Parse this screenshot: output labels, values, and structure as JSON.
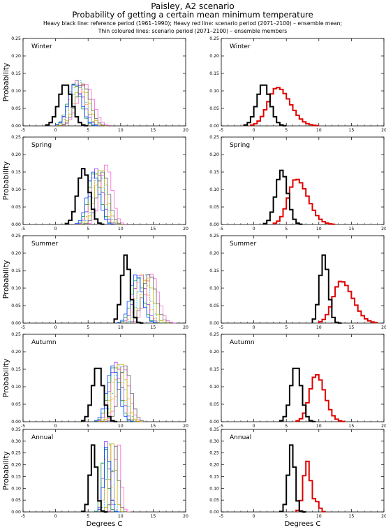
{
  "header": {
    "line1": "Paisley, A2 scenario",
    "line2": "Probability of getting a certain mean minimum temperature",
    "line3": "Heavy black line: reference period (1961–1990); Heavy red line: scenario period (2071–2100) – ensemble mean;",
    "line4": "Thin coloured lines: scenario period (2071–2100) – ensemble members"
  },
  "colors": {
    "reference": "#000000",
    "ensemble_mean": "#e00000",
    "members": [
      "#9b30ff",
      "#ff5fd2",
      "#00b4ff",
      "#009a3a",
      "#c8b400",
      "#ff8c00",
      "#0044ff",
      "#666666"
    ]
  },
  "labels": {
    "ylabel": "Probability",
    "xlabel": "Degrees C"
  },
  "chart_data": [
    {
      "panel": "Winter",
      "column": "ensemble members",
      "type": "line",
      "step": true,
      "xlim": [
        -5,
        20
      ],
      "xticks": [
        -5,
        0,
        5,
        10,
        15,
        20
      ],
      "ylim": [
        0,
        0.25
      ],
      "yticks": [
        "0.00",
        "0.05",
        "0.10",
        "0.15",
        "0.20",
        "0.25"
      ],
      "reference": {
        "mean": 1.5,
        "sd": 1.0,
        "peak": 0.12
      },
      "members": [
        {
          "mean": 3.2,
          "sd": 1.1,
          "peak": 0.13
        },
        {
          "mean": 4.6,
          "sd": 1.2,
          "peak": 0.12
        },
        {
          "mean": 3.6,
          "sd": 1.0,
          "peak": 0.13
        },
        {
          "mean": 2.9,
          "sd": 1.0,
          "peak": 0.12
        },
        {
          "mean": 4.0,
          "sd": 1.1,
          "peak": 0.12
        },
        {
          "mean": 3.4,
          "sd": 1.1,
          "peak": 0.13
        },
        {
          "mean": 3.0,
          "sd": 1.0,
          "peak": 0.12
        },
        {
          "mean": 4.2,
          "sd": 1.1,
          "peak": 0.12
        }
      ]
    },
    {
      "panel": "Winter",
      "column": "ensemble mean",
      "type": "line",
      "step": true,
      "xlim": [
        -5,
        20
      ],
      "xticks": [
        -5,
        0,
        5,
        10,
        15,
        20
      ],
      "ylim": [
        0,
        0.25
      ],
      "yticks": [
        "0.00",
        "0.05",
        "0.10",
        "0.15",
        "0.20",
        "0.25"
      ],
      "reference": {
        "mean": 1.5,
        "sd": 1.0,
        "peak": 0.12
      },
      "ensemble_mean": {
        "mean": 3.6,
        "sd": 1.4,
        "peak": 0.11,
        "skew": 0.4
      }
    },
    {
      "panel": "Spring",
      "column": "ensemble members",
      "type": "line",
      "step": true,
      "xlim": [
        -5,
        20
      ],
      "xticks": [
        -5,
        0,
        5,
        10,
        15,
        20
      ],
      "ylim": [
        0,
        0.25
      ],
      "yticks": [
        "0.00",
        "0.05",
        "0.10",
        "0.15",
        "0.20",
        "0.25"
      ],
      "reference": {
        "mean": 4.3,
        "sd": 0.9,
        "peak": 0.16
      },
      "members": [
        {
          "mean": 6.3,
          "sd": 0.9,
          "peak": 0.16
        },
        {
          "mean": 7.8,
          "sd": 0.9,
          "peak": 0.17
        },
        {
          "mean": 6.8,
          "sd": 0.9,
          "peak": 0.15
        },
        {
          "mean": 6.0,
          "sd": 0.9,
          "peak": 0.15
        },
        {
          "mean": 7.0,
          "sd": 0.9,
          "peak": 0.16
        },
        {
          "mean": 6.5,
          "sd": 0.9,
          "peak": 0.15
        },
        {
          "mean": 5.8,
          "sd": 0.9,
          "peak": 0.15
        },
        {
          "mean": 7.3,
          "sd": 0.9,
          "peak": 0.15
        }
      ]
    },
    {
      "panel": "Spring",
      "column": "ensemble mean",
      "type": "line",
      "step": true,
      "xlim": [
        -5,
        20
      ],
      "xticks": [
        -5,
        0,
        5,
        10,
        15,
        20
      ],
      "ylim": [
        0,
        0.25
      ],
      "yticks": [
        "0.00",
        "0.05",
        "0.10",
        "0.15",
        "0.20",
        "0.25"
      ],
      "reference": {
        "mean": 4.3,
        "sd": 0.9,
        "peak": 0.155
      },
      "ensemble_mean": {
        "mean": 6.5,
        "sd": 1.2,
        "peak": 0.13,
        "skew": 0.5
      }
    },
    {
      "panel": "Summer",
      "column": "ensemble members",
      "type": "line",
      "step": true,
      "xlim": [
        -5,
        20
      ],
      "xticks": [
        -5,
        0,
        5,
        10,
        15,
        20
      ],
      "ylim": [
        0,
        0.25
      ],
      "yticks": [
        "0.00",
        "0.05",
        "0.10",
        "0.15",
        "0.20",
        "0.25"
      ],
      "reference": {
        "mean": 10.8,
        "sd": 0.65,
        "peak": 0.195
      },
      "members": [
        {
          "mean": 13.0,
          "sd": 0.9,
          "peak": 0.14
        },
        {
          "mean": 14.8,
          "sd": 1.0,
          "peak": 0.14
        },
        {
          "mean": 13.6,
          "sd": 0.9,
          "peak": 0.14
        },
        {
          "mean": 12.6,
          "sd": 0.9,
          "peak": 0.13
        },
        {
          "mean": 14.1,
          "sd": 0.9,
          "peak": 0.13
        },
        {
          "mean": 13.3,
          "sd": 0.9,
          "peak": 0.14
        },
        {
          "mean": 12.4,
          "sd": 0.9,
          "peak": 0.14
        },
        {
          "mean": 14.4,
          "sd": 1.0,
          "peak": 0.14
        }
      ]
    },
    {
      "panel": "Summer",
      "column": "ensemble mean",
      "type": "line",
      "step": true,
      "xlim": [
        -5,
        20
      ],
      "xticks": [
        -5,
        0,
        5,
        10,
        15,
        20
      ],
      "ylim": [
        0,
        0.25
      ],
      "yticks": [
        "0.00",
        "0.05",
        "0.10",
        "0.15",
        "0.20",
        "0.25"
      ],
      "reference": {
        "mean": 10.8,
        "sd": 0.65,
        "peak": 0.195
      },
      "ensemble_mean": {
        "mean": 13.4,
        "sd": 1.2,
        "peak": 0.12,
        "skew": 0.5
      }
    },
    {
      "panel": "Autumn",
      "column": "ensemble members",
      "type": "line",
      "step": true,
      "xlim": [
        -5,
        20
      ],
      "xticks": [
        -5,
        0,
        5,
        10,
        15,
        20
      ],
      "ylim": [
        0,
        0.25
      ],
      "yticks": [
        "0.00",
        "0.05",
        "0.10",
        "0.15",
        "0.20",
        "0.25"
      ],
      "reference": {
        "mean": 6.5,
        "sd": 0.8,
        "peak": 0.16
      },
      "members": [
        {
          "mean": 9.3,
          "sd": 0.9,
          "peak": 0.17
        },
        {
          "mean": 10.4,
          "sd": 0.9,
          "peak": 0.16
        },
        {
          "mean": 9.8,
          "sd": 0.9,
          "peak": 0.16
        },
        {
          "mean": 9.0,
          "sd": 0.9,
          "peak": 0.16
        },
        {
          "mean": 10.0,
          "sd": 0.9,
          "peak": 0.17
        },
        {
          "mean": 9.5,
          "sd": 0.9,
          "peak": 0.16
        },
        {
          "mean": 8.8,
          "sd": 0.9,
          "peak": 0.16
        },
        {
          "mean": 10.7,
          "sd": 0.9,
          "peak": 0.16
        }
      ]
    },
    {
      "panel": "Autumn",
      "column": "ensemble mean",
      "type": "line",
      "step": true,
      "xlim": [
        -5,
        20
      ],
      "xticks": [
        -5,
        0,
        5,
        10,
        15,
        20
      ],
      "ylim": [
        0,
        0.25
      ],
      "yticks": [
        "0.00",
        "0.05",
        "0.10",
        "0.15",
        "0.20",
        "0.25"
      ],
      "reference": {
        "mean": 6.5,
        "sd": 0.8,
        "peak": 0.16
      },
      "ensemble_mean": {
        "mean": 9.6,
        "sd": 1.0,
        "peak": 0.135,
        "skew": 0.3
      }
    },
    {
      "panel": "Annual",
      "column": "ensemble members",
      "type": "line",
      "step": true,
      "xlim": [
        -5,
        20
      ],
      "xticks": [
        -5,
        0,
        5,
        10,
        15,
        20
      ],
      "ylim": [
        0,
        0.35
      ],
      "yticks": [
        "0.00",
        "0.05",
        "0.10",
        "0.15",
        "0.20",
        "0.25",
        "0.30",
        "0.35"
      ],
      "reference": {
        "mean": 5.8,
        "sd": 0.5,
        "peak": 0.285
      },
      "members": [
        {
          "mean": 7.8,
          "sd": 0.45,
          "peak": 0.3
        },
        {
          "mean": 9.6,
          "sd": 0.45,
          "peak": 0.3
        },
        {
          "mean": 8.3,
          "sd": 0.45,
          "peak": 0.29
        },
        {
          "mean": 7.6,
          "sd": 0.45,
          "peak": 0.28
        },
        {
          "mean": 8.8,
          "sd": 0.45,
          "peak": 0.29
        },
        {
          "mean": 8.1,
          "sd": 0.45,
          "peak": 0.3
        },
        {
          "mean": 7.9,
          "sd": 0.45,
          "peak": 0.29
        },
        {
          "mean": 9.2,
          "sd": 0.45,
          "peak": 0.28
        }
      ]
    },
    {
      "panel": "Annual",
      "column": "ensemble mean",
      "type": "line",
      "step": true,
      "xlim": [
        -5,
        20
      ],
      "xticks": [
        -5,
        0,
        5,
        10,
        15,
        20
      ],
      "ylim": [
        0,
        0.35
      ],
      "yticks": [
        "0.00",
        "0.05",
        "0.10",
        "0.15",
        "0.20",
        "0.25",
        "0.30",
        "0.35"
      ],
      "reference": {
        "mean": 5.8,
        "sd": 0.5,
        "peak": 0.285
      },
      "ensemble_mean": {
        "mean": 8.2,
        "sd": 0.55,
        "peak": 0.215,
        "second": {
          "mean": 9.7,
          "sd": 0.4,
          "peak": 0.04
        }
      }
    }
  ]
}
